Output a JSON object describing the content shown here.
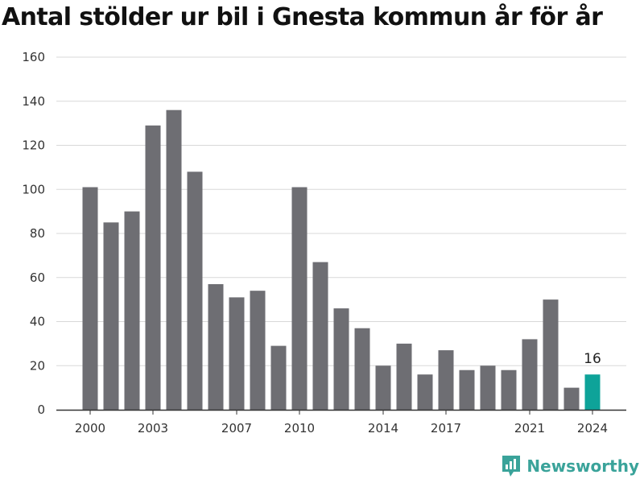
{
  "title": "Antal stölder ur bil i Gnesta kommun år för år",
  "brand": "Newsworthy",
  "colors": {
    "bar": "#6e6e73",
    "highlight": "#0ea399",
    "grid": "#d8d8d8",
    "axis": "#333333",
    "brand": "#3aa39a"
  },
  "chart_data": {
    "type": "bar",
    "title": "Antal stölder ur bil i Gnesta kommun år för år",
    "xlabel": "",
    "ylabel": "",
    "x": [
      2000,
      2001,
      2002,
      2003,
      2004,
      2005,
      2006,
      2007,
      2008,
      2009,
      2010,
      2011,
      2012,
      2013,
      2014,
      2015,
      2016,
      2017,
      2018,
      2019,
      2020,
      2021,
      2022,
      2023,
      2024
    ],
    "values": [
      101,
      85,
      90,
      129,
      136,
      108,
      57,
      51,
      54,
      29,
      101,
      67,
      46,
      37,
      20,
      30,
      16,
      27,
      18,
      20,
      18,
      32,
      50,
      10,
      16
    ],
    "ylim": [
      0,
      160
    ],
    "yticks": [
      0,
      20,
      40,
      60,
      80,
      100,
      120,
      140,
      160
    ],
    "xticks": [
      2000,
      2003,
      2007,
      2010,
      2014,
      2017,
      2021,
      2024
    ],
    "highlight": {
      "x": 2024,
      "label": "16"
    },
    "grid": true,
    "legend": "none"
  }
}
